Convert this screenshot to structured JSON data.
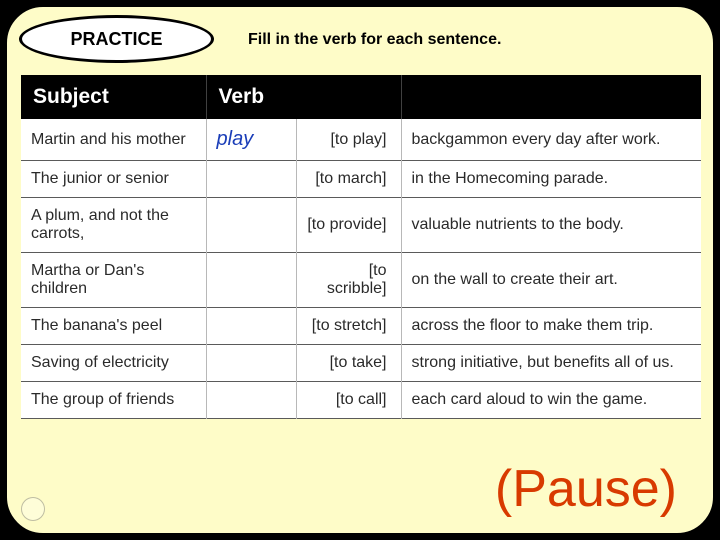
{
  "header": {
    "pill": "PRACTICE",
    "instruction": "Fill in the verb for each sentence."
  },
  "table": {
    "headers": {
      "subject": "Subject",
      "verb": "Verb",
      "rest": ""
    },
    "rows": [
      {
        "subject": "Martin and his mother",
        "answer": "play",
        "hint": "[to play]",
        "rest": "backgammon every day after work."
      },
      {
        "subject": "The junior or senior",
        "answer": "",
        "hint": "[to march]",
        "rest": "in the Homecoming parade."
      },
      {
        "subject": "A plum, and not the carrots,",
        "answer": "",
        "hint": "[to provide]",
        "rest": "valuable nutrients to the body."
      },
      {
        "subject": "Martha or Dan's children",
        "answer": "",
        "hint": "[to scribble]",
        "rest": "on the wall to create their art."
      },
      {
        "subject": "The banana's peel",
        "answer": "",
        "hint": "[to stretch]",
        "rest": "across the floor to make them trip."
      },
      {
        "subject": "Saving of electricity",
        "answer": "",
        "hint": "[to take]",
        "rest": "strong initiative, but benefits all of us."
      },
      {
        "subject": "The group of friends",
        "answer": "",
        "hint": "[to call]",
        "rest": "each card aloud to win the game."
      }
    ]
  },
  "footer": {
    "pause": "(Pause)"
  },
  "colors": {
    "slide_bg": "#fefcc8",
    "header_bg": "#000000",
    "header_fg": "#ffffff",
    "answer_color": "#1a3db8",
    "pause_color": "#d83a00",
    "row_border": "#5a5a5a"
  }
}
